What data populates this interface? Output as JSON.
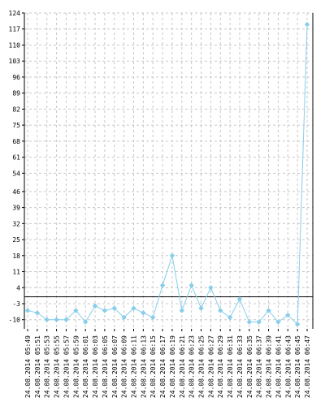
{
  "chart_data": {
    "type": "line",
    "title": "",
    "xlabel": "",
    "ylabel": "",
    "grid": true,
    "line_color": "#87ceeb",
    "ylim": [
      -14,
      124
    ],
    "y_ticks": [
      "124",
      "117",
      "110",
      "103",
      "96",
      "89",
      "82",
      "75",
      "68",
      "61",
      "54",
      "46",
      "39",
      "32",
      "25",
      "18",
      "11",
      "4",
      "-3",
      "-10"
    ],
    "y_tick_values": [
      124,
      117,
      110,
      103,
      96,
      89,
      82,
      75,
      68,
      61,
      54,
      46,
      39,
      32,
      25,
      18,
      11,
      4,
      -3,
      -10
    ],
    "baseline": 0,
    "categories": [
      "24.08.2014 05:49",
      "24.08.2014 05:51",
      "24.08.2014 05:53",
      "24.08.2014 05:55",
      "24.08.2014 05:57",
      "24.08.2014 05:59",
      "24.08.2014 06:01",
      "24.08.2014 06:03",
      "24.08.2014 06:05",
      "24.08.2014 06:07",
      "24.08.2014 06:09",
      "24.08.2014 06:11",
      "24.08.2014 06:13",
      "24.08.2014 06:15",
      "24.08.2014 06:17",
      "24.08.2014 06:19",
      "24.08.2014 06:21",
      "24.08.2014 06:23",
      "24.08.2014 06:25",
      "24.08.2014 06:27",
      "24.08.2014 06:29",
      "24.08.2014 06:31",
      "24.08.2014 06:33",
      "24.08.2014 06:35",
      "24.08.2014 06:37",
      "24.08.2014 06:39",
      "24.08.2014 06:41",
      "24.08.2014 06:43",
      "24.08.2014 06:45",
      "24.08.2014 06:47"
    ],
    "series": [
      {
        "values": [
          -6,
          -7,
          -10,
          -10,
          -10,
          -6,
          -11,
          -4,
          -6,
          -5,
          -9,
          -5,
          -7,
          -9,
          5,
          18,
          -6,
          5,
          -5,
          4,
          -6,
          -9,
          -1,
          -11,
          -11,
          -6,
          -11,
          -8,
          -12,
          119
        ]
      }
    ]
  }
}
